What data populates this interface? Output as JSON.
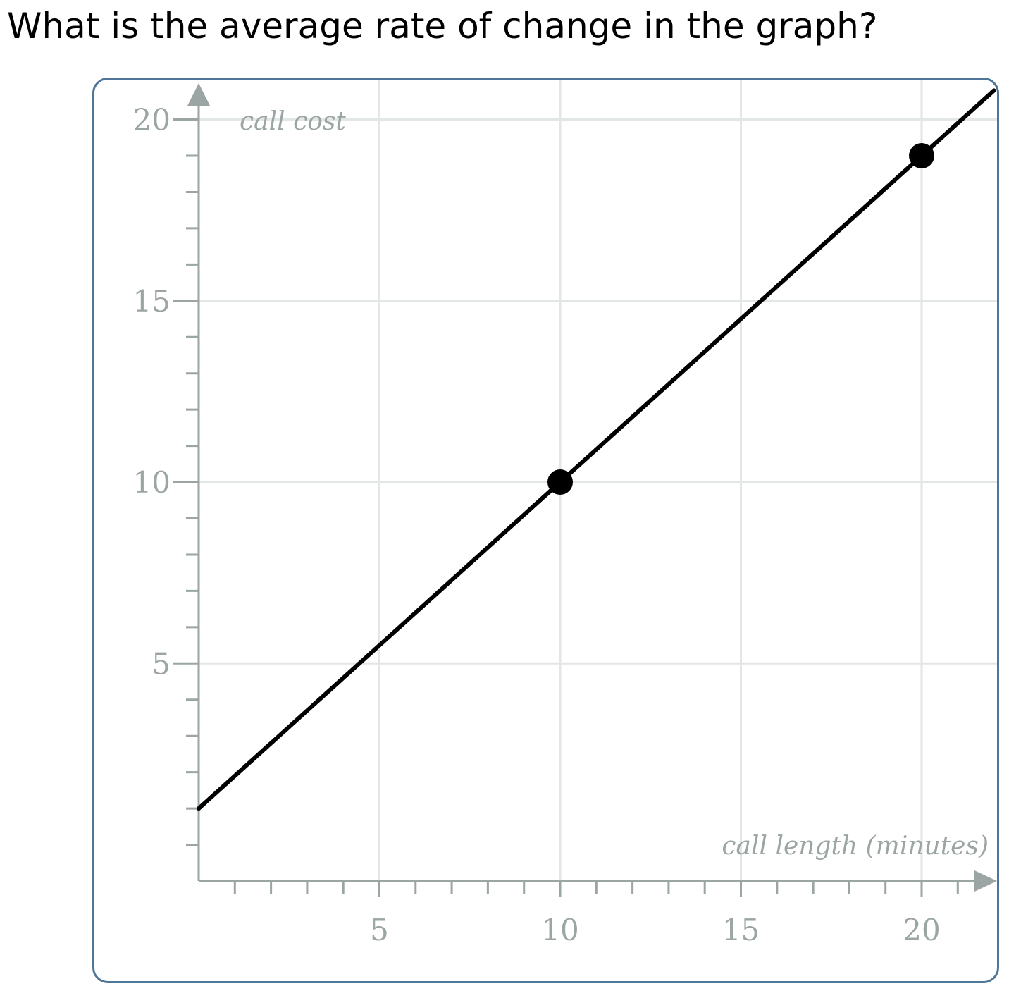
{
  "question": {
    "text": "What is the average rate of change in the graph?"
  },
  "colors": {
    "frame": "#4f7598",
    "grid": "#e2e6e6",
    "axis": "#9aa5a4",
    "line": "#000000",
    "point": "#000000"
  },
  "chart_data": {
    "type": "line",
    "title": "",
    "xlabel": "call length (minutes)",
    "ylabel": "call cost",
    "xlim": [
      0,
      22
    ],
    "ylim": [
      -1,
      22
    ],
    "x_ticks": [
      5,
      10,
      15,
      20
    ],
    "y_ticks": [
      5,
      10,
      15,
      20
    ],
    "x_tick_labels": [
      "5",
      "10",
      "15",
      "20"
    ],
    "y_tick_labels": [
      "5",
      "10",
      "15",
      "20"
    ],
    "minor_tick_step": 1,
    "grid": true,
    "legend": "none",
    "series": [
      {
        "x": [
          0,
          22
        ],
        "y": [
          1,
          20.8
        ]
      }
    ],
    "points": [
      {
        "x": 10,
        "y": 10
      },
      {
        "x": 20,
        "y": 19
      }
    ]
  }
}
